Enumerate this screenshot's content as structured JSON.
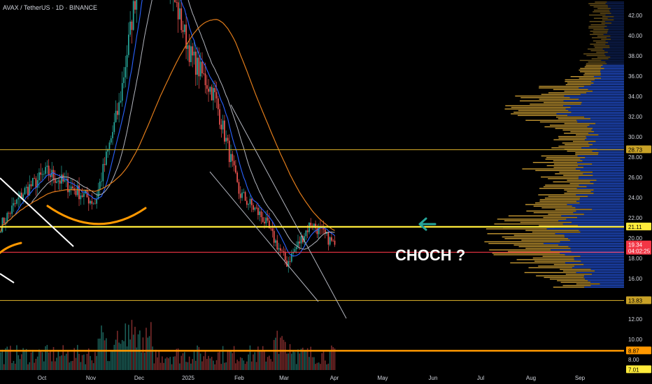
{
  "header": {
    "title": "AVAX / TetherUS · 1D · BINANCE"
  },
  "colors": {
    "bull": "#26a69a",
    "bear": "#ef5350",
    "profile_up": "#e8b339",
    "profile_down": "#2962ff",
    "ema_short": "#2962ff",
    "sma_mid": "#b2b5be",
    "ema_long": "#e07b1a",
    "level_yellow": "#ffeb3b",
    "level_red": "#f23645",
    "level_orange": "#ff9800",
    "level_gold": "#c9a227",
    "arrow": "#26a69a",
    "annotation": "#ffffff"
  },
  "annotation": {
    "text": "CHOCH ?"
  },
  "chart_data": {
    "type": "candlestick",
    "symbol": "AVAX / TetherUS",
    "interval": "1D",
    "exchange": "BINANCE",
    "x_axis_labels": [
      "Oct",
      "Nov",
      "Dec",
      "2025",
      "Feb",
      "Mar",
      "Apr",
      "May",
      "Jun",
      "Jul",
      "Aug",
      "Sep"
    ],
    "y_axis_ticks": [
      "42.00",
      "40.00",
      "38.00",
      "36.00",
      "34.00",
      "32.00",
      "30.00",
      "28.00",
      "26.00",
      "24.00",
      "22.00",
      "20.00",
      "18.00",
      "16.00",
      "14.00",
      "12.00",
      "10.00",
      "8.00"
    ],
    "ylim": [
      6.5,
      43.5
    ],
    "price_labels": [
      {
        "value": "28.73",
        "style": "gold"
      },
      {
        "value": "21.11",
        "style": "yellow"
      },
      {
        "value": "19.34",
        "sub": "04:02:25",
        "style": "red"
      },
      {
        "value": "13.83",
        "style": "gold"
      },
      {
        "value": "8.87",
        "style": "orange"
      },
      {
        "value": "7.01",
        "style": "yellow"
      }
    ],
    "horizontal_levels": [
      {
        "name": "resistance",
        "value": 28.73
      },
      {
        "name": "choch level",
        "value": 21.11
      },
      {
        "name": "support",
        "value": 18.6
      },
      {
        "name": "support",
        "value": 13.83
      },
      {
        "name": "support",
        "value": 8.87
      }
    ],
    "monthly_path": [
      {
        "month": "Sep",
        "open": 21.0,
        "close": 24.5
      },
      {
        "month": "Oct",
        "open": 24.5,
        "close": 26.5
      },
      {
        "month": "Oct",
        "open": 26.5,
        "close": 25.0
      },
      {
        "month": "Nov",
        "open": 25.0,
        "close": 23.5
      },
      {
        "month": "Nov",
        "open": 23.5,
        "close": 33.0
      },
      {
        "month": "Dec",
        "open": 33.0,
        "close": 49.0
      },
      {
        "month": "Dec",
        "open": 49.0,
        "close": 46.0
      },
      {
        "month": "Jan",
        "open": 46.0,
        "close": 38.0
      },
      {
        "month": "Jan",
        "open": 38.0,
        "close": 34.0
      },
      {
        "month": "Feb",
        "open": 34.0,
        "close": 24.5
      },
      {
        "month": "Feb",
        "open": 24.5,
        "close": 22.0
      },
      {
        "month": "Mar",
        "open": 22.0,
        "close": 17.5
      },
      {
        "month": "Mar",
        "open": 17.5,
        "close": 21.5
      },
      {
        "month": "Apr",
        "open": 21.5,
        "close": 19.34
      }
    ]
  }
}
